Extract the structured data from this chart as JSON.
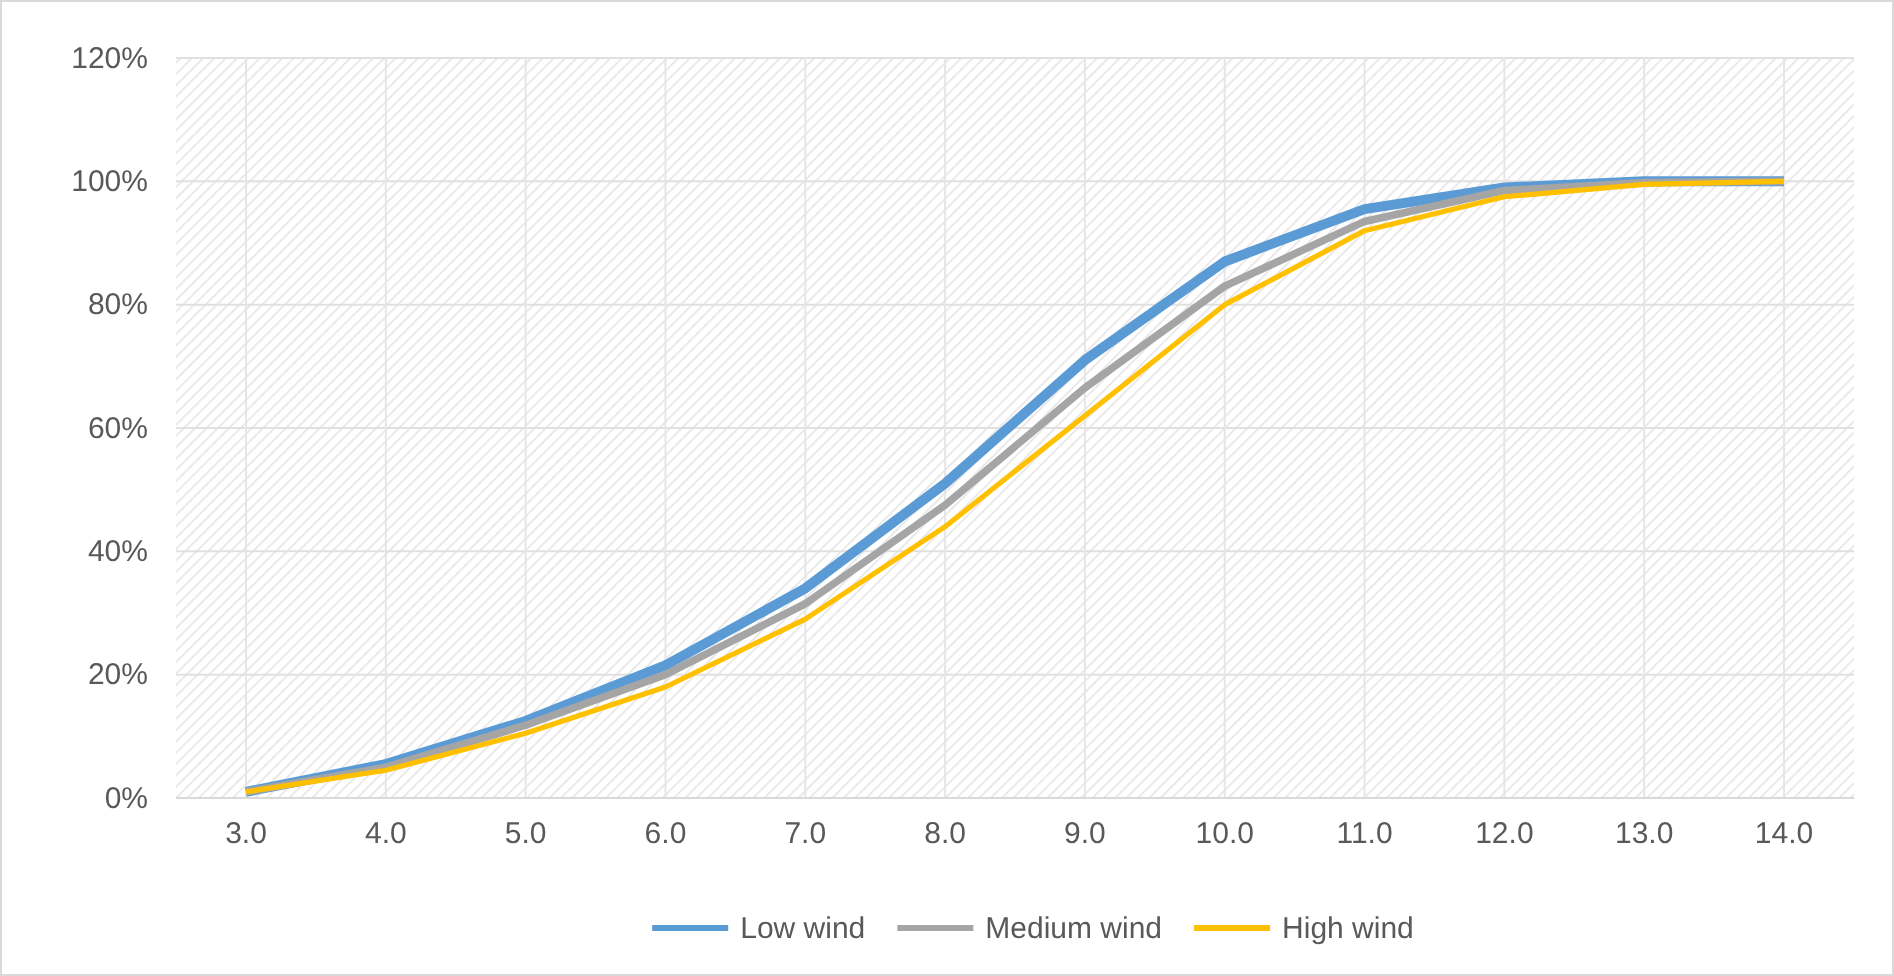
{
  "chart_data": {
    "type": "line",
    "categories": [
      "3.0",
      "4.0",
      "5.0",
      "6.0",
      "7.0",
      "8.0",
      "9.0",
      "10.0",
      "11.0",
      "12.0",
      "13.0",
      "14.0"
    ],
    "series": [
      {
        "name": "Low wind",
        "color": "#5b9bd5",
        "values": [
          1,
          5.5,
          12.5,
          21.5,
          34,
          51,
          71,
          87,
          95.5,
          99,
          100,
          100
        ]
      },
      {
        "name": "Medium wind",
        "color": "#a5a5a5",
        "values": [
          1,
          5,
          11.8,
          20,
          31.5,
          47.5,
          66.5,
          83,
          93.5,
          98.5,
          99.8,
          100
        ]
      },
      {
        "name": "High wind",
        "color": "#ffc000",
        "values": [
          1,
          4.5,
          10.5,
          18,
          29,
          44,
          62,
          80,
          92,
          97.5,
          99.5,
          100
        ]
      }
    ],
    "ylim": [
      0,
      120
    ],
    "yticks": [
      {
        "value": 0,
        "label": "0%"
      },
      {
        "value": 20,
        "label": "20%"
      },
      {
        "value": 40,
        "label": "40%"
      },
      {
        "value": 60,
        "label": "60%"
      },
      {
        "value": 80,
        "label": "80%"
      },
      {
        "value": 100,
        "label": "100%"
      },
      {
        "value": 120,
        "label": "120%"
      }
    ],
    "grid": true,
    "legend": "bottom",
    "marker": "none",
    "line_style": "solid"
  }
}
